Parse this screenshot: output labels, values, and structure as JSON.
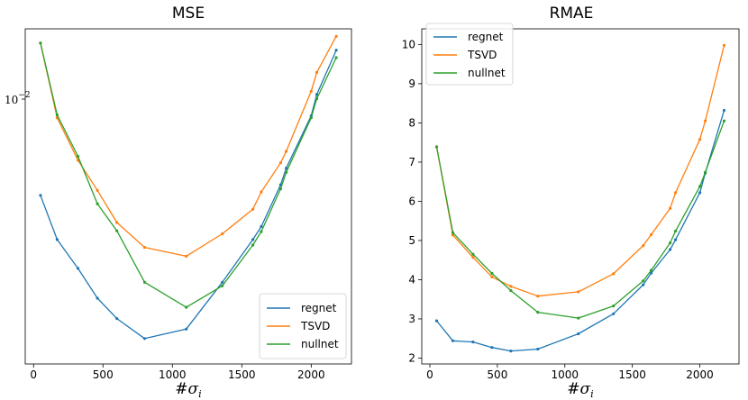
{
  "chart_data": [
    {
      "type": "line",
      "title": "MSE",
      "xlabel": "#σ_i",
      "ylabel": "",
      "yscale": "log",
      "xlim": [
        -60,
        2290
      ],
      "ylim": [
        0.00135,
        0.0138
      ],
      "xticks": [
        0,
        500,
        1000,
        1500,
        2000
      ],
      "xtick_labels": [
        "0",
        "500",
        "1000",
        "1500",
        "2000"
      ],
      "yticks": [
        0.01
      ],
      "ytick_labels": [
        "10",
        "−2"
      ],
      "legend_position": "lower-right",
      "series": [
        {
          "name": "regnet",
          "color": "#1f77b4",
          "x": [
            50,
            170,
            320,
            460,
            600,
            800,
            1100,
            1360,
            1580,
            1640,
            1780,
            1820,
            2000,
            2040,
            2180
          ],
          "y": [
            0.00435,
            0.0032,
            0.00262,
            0.00213,
            0.00185,
            0.00161,
            0.00172,
            0.00238,
            0.0032,
            0.0035,
            0.00468,
            0.00525,
            0.00755,
            0.00875,
            0.0119
          ]
        },
        {
          "name": "TSVD",
          "color": "#ff7f0e",
          "x": [
            50,
            170,
            320,
            460,
            600,
            800,
            1100,
            1360,
            1580,
            1640,
            1780,
            1820,
            2000,
            2040,
            2180
          ],
          "y": [
            0.0125,
            0.00745,
            0.00555,
            0.0045,
            0.0036,
            0.00303,
            0.00285,
            0.00333,
            0.00395,
            0.00445,
            0.00545,
            0.0059,
            0.00895,
            0.0102,
            0.0131
          ]
        },
        {
          "name": "nullnet",
          "color": "#2ca02c",
          "x": [
            50,
            170,
            320,
            460,
            600,
            800,
            1100,
            1360,
            1580,
            1640,
            1780,
            1820,
            2000,
            2040,
            2180
          ],
          "y": [
            0.0125,
            0.0076,
            0.0057,
            0.0041,
            0.0034,
            0.00238,
            0.002,
            0.00232,
            0.00308,
            0.00338,
            0.00455,
            0.0051,
            0.00745,
            0.0085,
            0.0113
          ]
        }
      ]
    },
    {
      "type": "line",
      "title": "RMAE",
      "xlabel": "#σ_i",
      "ylabel": "",
      "xlim": [
        -60,
        2290
      ],
      "ylim": [
        1.85,
        10.4
      ],
      "xticks": [
        0,
        500,
        1000,
        1500,
        2000
      ],
      "xtick_labels": [
        "0",
        "500",
        "1000",
        "1500",
        "2000"
      ],
      "yticks": [
        2,
        3,
        4,
        5,
        6,
        7,
        8,
        9,
        10
      ],
      "ytick_labels": [
        "2",
        "3",
        "4",
        "5",
        "6",
        "7",
        "8",
        "9",
        "10"
      ],
      "legend_position": "upper-left",
      "series": [
        {
          "name": "regnet",
          "color": "#1f77b4",
          "x": [
            50,
            170,
            320,
            460,
            600,
            800,
            1100,
            1360,
            1580,
            1640,
            1780,
            1820,
            2000,
            2040,
            2180
          ],
          "y": [
            2.95,
            2.44,
            2.41,
            2.27,
            2.18,
            2.23,
            2.62,
            3.13,
            3.87,
            4.17,
            4.77,
            5.02,
            6.22,
            6.72,
            8.32
          ]
        },
        {
          "name": "TSVD",
          "color": "#ff7f0e",
          "x": [
            50,
            170,
            320,
            460,
            600,
            800,
            1100,
            1360,
            1580,
            1640,
            1780,
            1820,
            2000,
            2040,
            2180
          ],
          "y": [
            7.39,
            5.14,
            4.57,
            4.07,
            3.83,
            3.58,
            3.69,
            4.15,
            4.87,
            5.15,
            5.82,
            6.22,
            7.58,
            8.05,
            9.98
          ]
        },
        {
          "name": "nullnet",
          "color": "#2ca02c",
          "x": [
            50,
            170,
            320,
            460,
            600,
            800,
            1100,
            1360,
            1580,
            1640,
            1780,
            1820,
            2000,
            2040,
            2180
          ],
          "y": [
            7.39,
            5.2,
            4.65,
            4.16,
            3.72,
            3.17,
            3.02,
            3.33,
            3.97,
            4.24,
            4.94,
            5.24,
            6.38,
            6.74,
            8.05
          ]
        }
      ]
    }
  ]
}
